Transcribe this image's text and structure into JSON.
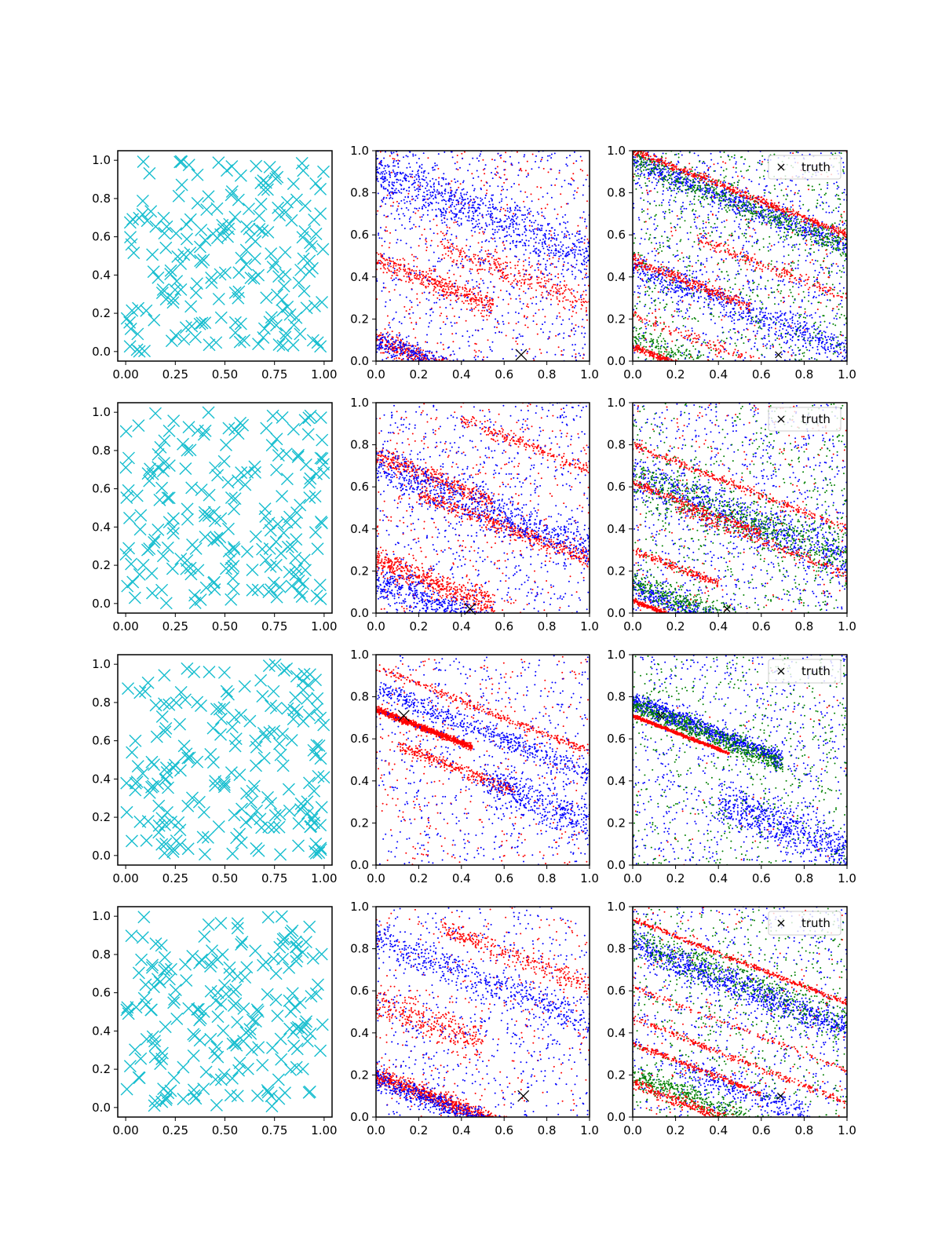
{
  "figure": {
    "rows": 4,
    "cols": 3,
    "background": "#ffffff"
  },
  "colors": {
    "samples": "#17becf",
    "red": "#ff0000",
    "blue": "#0000ff",
    "green": "#008000",
    "truth": "#000000"
  },
  "chart_data": [
    {
      "row": 0,
      "col": 0,
      "type": "scatter",
      "marker": "x",
      "color": "#17becf",
      "xlim": [
        -0.04,
        1.04
      ],
      "ylim": [
        -0.05,
        1.05
      ],
      "xticks": [
        "0.00",
        "0.25",
        "0.50",
        "0.75",
        "1.00"
      ],
      "yticks": [
        "0.0",
        "0.2",
        "0.4",
        "0.6",
        "0.8",
        "1.0"
      ],
      "num_points": 200,
      "seed": 11
    },
    {
      "row": 0,
      "col": 1,
      "type": "scatter",
      "xlim": [
        0,
        1
      ],
      "ylim": [
        0,
        1
      ],
      "xticks": [
        "0.0",
        "0.2",
        "0.4",
        "0.6",
        "0.8",
        "1.0"
      ],
      "yticks": [
        "0.0",
        "0.2",
        "0.4",
        "0.6",
        "0.8",
        "1.0"
      ],
      "truth": {
        "x": 0.68,
        "y": 0.03,
        "marker_scale": "large"
      },
      "series": [
        {
          "color": "red",
          "bands": [
            [
              0.0,
              1.0,
              -0.2,
              0.03,
              500
            ],
            [
              0.0,
              0.55,
              0.48,
              0.05,
              400
            ],
            [
              0.0,
              0.5,
              0.1,
              0.05,
              400
            ],
            [
              0.3,
              1.0,
              0.55,
              0.06,
              300
            ]
          ],
          "noise": 400,
          "seed": 21
        },
        {
          "color": "blue",
          "bands": [
            [
              0.0,
              1.0,
              0.9,
              0.12,
              800
            ],
            [
              0.0,
              0.5,
              0.1,
              0.06,
              400
            ]
          ],
          "noise": 700,
          "seed": 22
        }
      ]
    },
    {
      "row": 0,
      "col": 2,
      "type": "scatter",
      "xlim": [
        0,
        1
      ],
      "ylim": [
        0,
        1
      ],
      "xticks": [
        "0.0",
        "0.2",
        "0.4",
        "0.6",
        "0.8",
        "1.0"
      ],
      "yticks": [
        "0.0",
        "0.2",
        "0.4",
        "0.6",
        "0.8",
        "1.0"
      ],
      "legend": {
        "label": "truth",
        "location": "top-right"
      },
      "truth": {
        "x": 0.68,
        "y": 0.03,
        "marker_scale": "small"
      },
      "series": [
        {
          "color": "blue",
          "bands": [
            [
              0.0,
              1.0,
              0.95,
              0.06,
              700
            ],
            [
              0.0,
              1.0,
              0.45,
              0.07,
              600
            ]
          ],
          "noise": 900,
          "seed": 31
        },
        {
          "color": "green",
          "bands": [
            [
              0.0,
              1.0,
              0.95,
              0.06,
              500
            ],
            [
              0.0,
              0.7,
              0.12,
              0.05,
              300
            ]
          ],
          "noise": 700,
          "seed": 32
        },
        {
          "color": "red",
          "bands": [
            [
              0.0,
              0.6,
              0.07,
              0.015,
              500
            ],
            [
              0.0,
              1.0,
              1.0,
              0.02,
              500
            ],
            [
              0.0,
              0.55,
              0.48,
              0.03,
              300
            ],
            [
              0.3,
              1.0,
              0.58,
              0.03,
              200
            ],
            [
              0.0,
              1.0,
              0.22,
              0.03,
              200
            ]
          ],
          "noise": 200,
          "seed": 33
        }
      ]
    },
    {
      "row": 1,
      "col": 0,
      "type": "scatter",
      "marker": "x",
      "color": "#17becf",
      "xlim": [
        -0.04,
        1.04
      ],
      "ylim": [
        -0.05,
        1.05
      ],
      "xticks": [
        "0.00",
        "0.25",
        "0.50",
        "0.75",
        "1.00"
      ],
      "yticks": [
        "0.0",
        "0.2",
        "0.4",
        "0.6",
        "0.8",
        "1.0"
      ],
      "num_points": 200,
      "seed": 12
    },
    {
      "row": 1,
      "col": 1,
      "type": "scatter",
      "xlim": [
        0,
        1
      ],
      "ylim": [
        0,
        1
      ],
      "xticks": [
        "0.0",
        "0.2",
        "0.4",
        "0.6",
        "0.8",
        "1.0"
      ],
      "yticks": [
        "0.0",
        "0.2",
        "0.4",
        "0.6",
        "0.8",
        "1.0"
      ],
      "truth": {
        "x": 0.44,
        "y": 0.02,
        "marker_scale": "large"
      },
      "series": [
        {
          "color": "red",
          "bands": [
            [
              0.0,
              0.55,
              0.25,
              0.06,
              500
            ],
            [
              0.0,
              0.55,
              0.75,
              0.04,
              400
            ],
            [
              0.2,
              1.0,
              0.57,
              0.04,
              500
            ],
            [
              0.4,
              1.0,
              0.92,
              0.03,
              200
            ]
          ],
          "noise": 400,
          "seed": 41
        },
        {
          "color": "blue",
          "bands": [
            [
              0.0,
              1.0,
              0.7,
              0.1,
              700
            ],
            [
              0.0,
              0.6,
              0.15,
              0.07,
              500
            ]
          ],
          "noise": 700,
          "seed": 42
        }
      ]
    },
    {
      "row": 1,
      "col": 2,
      "type": "scatter",
      "xlim": [
        0,
        1
      ],
      "ylim": [
        0,
        1
      ],
      "xticks": [
        "0.0",
        "0.2",
        "0.4",
        "0.6",
        "0.8",
        "1.0"
      ],
      "yticks": [
        "0.0",
        "0.2",
        "0.4",
        "0.6",
        "0.8",
        "1.0"
      ],
      "legend": {
        "label": "truth",
        "location": "top-right"
      },
      "truth": {
        "x": 0.44,
        "y": 0.02,
        "marker_scale": "small"
      },
      "series": [
        {
          "color": "blue",
          "bands": [
            [
              0.0,
              1.0,
              0.65,
              0.1,
              700
            ],
            [
              0.0,
              0.6,
              0.12,
              0.05,
              500
            ]
          ],
          "noise": 800,
          "seed": 51
        },
        {
          "color": "green",
          "bands": [
            [
              0.0,
              1.0,
              0.65,
              0.1,
              600
            ],
            [
              0.0,
              0.6,
              0.15,
              0.06,
              400
            ]
          ],
          "noise": 600,
          "seed": 52
        },
        {
          "color": "red",
          "bands": [
            [
              0.0,
              0.6,
              0.06,
              0.012,
              700
            ],
            [
              0.0,
              1.0,
              0.8,
              0.02,
              300
            ],
            [
              0.0,
              0.6,
              0.62,
              0.02,
              250
            ],
            [
              0.0,
              0.4,
              0.3,
              0.02,
              200
            ],
            [
              0.2,
              1.0,
              0.5,
              0.03,
              200
            ]
          ],
          "noise": 200,
          "seed": 53
        }
      ]
    },
    {
      "row": 2,
      "col": 0,
      "type": "scatter",
      "marker": "x",
      "color": "#17becf",
      "xlim": [
        -0.04,
        1.04
      ],
      "ylim": [
        -0.05,
        1.05
      ],
      "xticks": [
        "0.00",
        "0.25",
        "0.50",
        "0.75",
        "1.00"
      ],
      "yticks": [
        "0.0",
        "0.2",
        "0.4",
        "0.6",
        "0.8",
        "1.0"
      ],
      "num_points": 200,
      "seed": 13
    },
    {
      "row": 2,
      "col": 1,
      "type": "scatter",
      "xlim": [
        0,
        1
      ],
      "ylim": [
        0,
        1
      ],
      "xticks": [
        "0.0",
        "0.2",
        "0.4",
        "0.6",
        "0.8",
        "1.0"
      ],
      "yticks": [
        "0.0",
        "0.2",
        "0.4",
        "0.6",
        "0.8",
        "1.0"
      ],
      "truth": {
        "x": 0.13,
        "y": 0.71,
        "marker_scale": "large"
      },
      "series": [
        {
          "color": "red",
          "bands": [
            [
              0.0,
              0.45,
              0.74,
              0.015,
              900
            ],
            [
              0.1,
              0.65,
              0.57,
              0.03,
              300
            ],
            [
              0.0,
              1.0,
              0.94,
              0.02,
              300
            ]
          ],
          "noise": 350,
          "seed": 61
        },
        {
          "color": "blue",
          "bands": [
            [
              0.0,
              1.0,
              0.84,
              0.05,
              500
            ],
            [
              0.5,
              1.0,
              0.4,
              0.1,
              400
            ]
          ],
          "noise": 600,
          "seed": 62
        }
      ]
    },
    {
      "row": 2,
      "col": 2,
      "type": "scatter",
      "xlim": [
        0,
        1
      ],
      "ylim": [
        0,
        1
      ],
      "xticks": [
        "0.0",
        "0.2",
        "0.4",
        "0.6",
        "0.8",
        "1.0"
      ],
      "yticks": [
        "0.0",
        "0.2",
        "0.4",
        "0.6",
        "0.8",
        "1.0"
      ],
      "legend": {
        "label": "truth",
        "location": "top-right"
      },
      "truth": {
        "x": 0.13,
        "y": 0.71,
        "marker_scale": "small"
      },
      "series": [
        {
          "color": "blue",
          "bands": [
            [
              0.0,
              0.7,
              0.78,
              0.04,
              900
            ],
            [
              0.4,
              1.0,
              0.3,
              0.1,
              600
            ]
          ],
          "noise": 700,
          "seed": 71
        },
        {
          "color": "green",
          "bands": [
            [
              0.0,
              0.7,
              0.76,
              0.05,
              600
            ]
          ],
          "noise": 600,
          "seed": 72
        },
        {
          "color": "red",
          "bands": [
            [
              0.0,
              0.45,
              0.71,
              0.008,
              700
            ]
          ],
          "noise": 50,
          "seed": 73
        }
      ]
    },
    {
      "row": 3,
      "col": 0,
      "type": "scatter",
      "marker": "x",
      "color": "#17becf",
      "xlim": [
        -0.04,
        1.04
      ],
      "ylim": [
        -0.05,
        1.05
      ],
      "xticks": [
        "0.00",
        "0.25",
        "0.50",
        "0.75",
        "1.00"
      ],
      "yticks": [
        "0.0",
        "0.2",
        "0.4",
        "0.6",
        "0.8",
        "1.0"
      ],
      "num_points": 200,
      "seed": 14
    },
    {
      "row": 3,
      "col": 1,
      "type": "scatter",
      "xlim": [
        0,
        1
      ],
      "ylim": [
        0,
        1
      ],
      "xticks": [
        "0.0",
        "0.2",
        "0.4",
        "0.6",
        "0.8",
        "1.0"
      ],
      "yticks": [
        "0.0",
        "0.2",
        "0.4",
        "0.6",
        "0.8",
        "1.0"
      ],
      "truth": {
        "x": 0.69,
        "y": 0.1,
        "marker_scale": "large"
      },
      "series": [
        {
          "color": "red",
          "bands": [
            [
              0.0,
              0.65,
              0.2,
              0.04,
              900
            ],
            [
              0.0,
              0.5,
              0.55,
              0.08,
              300
            ],
            [
              0.3,
              1.0,
              0.9,
              0.05,
              300
            ]
          ],
          "noise": 300,
          "seed": 81
        },
        {
          "color": "blue",
          "bands": [
            [
              0.0,
              0.65,
              0.18,
              0.05,
              500
            ],
            [
              0.0,
              1.0,
              0.85,
              0.08,
              500
            ]
          ],
          "noise": 600,
          "seed": 82
        }
      ]
    },
    {
      "row": 3,
      "col": 2,
      "type": "scatter",
      "xlim": [
        0,
        1
      ],
      "ylim": [
        0,
        1
      ],
      "xticks": [
        "0.0",
        "0.2",
        "0.4",
        "0.6",
        "0.8",
        "1.0"
      ],
      "yticks": [
        "0.0",
        "0.2",
        "0.4",
        "0.6",
        "0.8",
        "1.0"
      ],
      "legend": {
        "label": "truth",
        "location": "top-right"
      },
      "truth": {
        "x": 0.69,
        "y": 0.1,
        "marker_scale": "small"
      },
      "series": [
        {
          "color": "blue",
          "bands": [
            [
              0.0,
              1.0,
              0.82,
              0.07,
              900
            ],
            [
              0.2,
              0.8,
              0.25,
              0.07,
              300
            ]
          ],
          "noise": 700,
          "seed": 91
        },
        {
          "color": "green",
          "bands": [
            [
              0.0,
              0.7,
              0.2,
              0.06,
              500
            ],
            [
              0.0,
              1.0,
              0.85,
              0.08,
              400
            ]
          ],
          "noise": 600,
          "seed": 92
        },
        {
          "color": "red",
          "bands": [
            [
              0.0,
              1.0,
              0.94,
              0.012,
              400
            ],
            [
              0.0,
              0.7,
              0.16,
              0.03,
              400
            ],
            [
              0.0,
              0.6,
              0.35,
              0.015,
              250
            ],
            [
              0.0,
              1.0,
              0.47,
              0.015,
              250
            ],
            [
              0.0,
              1.0,
              0.62,
              0.015,
              150
            ]
          ],
          "noise": 150,
          "seed": 93
        }
      ]
    }
  ]
}
